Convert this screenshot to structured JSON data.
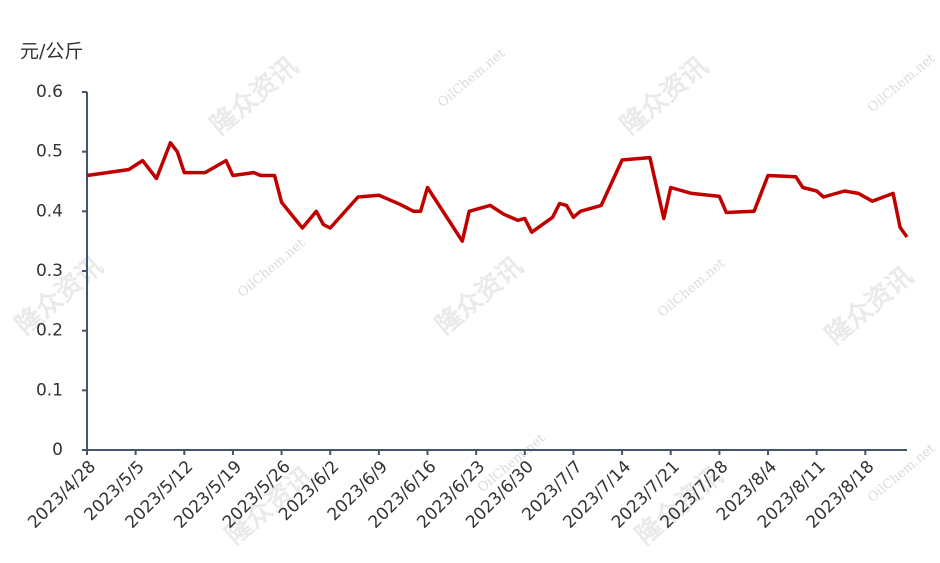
{
  "chart_data": {
    "type": "line",
    "y_label": "元/公斤",
    "watermark": {
      "brand": "隆众资讯",
      "site": "OilChem.net"
    },
    "x": [
      "2023/4/28",
      "2023/5/4",
      "2023/5/6",
      "2023/5/8",
      "2023/5/10",
      "2023/5/11",
      "2023/5/12",
      "2023/5/15",
      "2023/5/18",
      "2023/5/19",
      "2023/5/22",
      "2023/5/23",
      "2023/5/25",
      "2023/5/26",
      "2023/5/29",
      "2023/5/31",
      "2023/6/1",
      "2023/6/2",
      "2023/6/6",
      "2023/6/9",
      "2023/6/12",
      "2023/6/14",
      "2023/6/15",
      "2023/6/16",
      "2023/6/21",
      "2023/6/22",
      "2023/6/25",
      "2023/6/27",
      "2023/6/29",
      "2023/6/30",
      "2023/7/1",
      "2023/7/4",
      "2023/7/5",
      "2023/7/6",
      "2023/7/7",
      "2023/7/8",
      "2023/7/11",
      "2023/7/14",
      "2023/7/18",
      "2023/7/20",
      "2023/7/21",
      "2023/7/24",
      "2023/7/28",
      "2023/7/29",
      "2023/8/2",
      "2023/8/4",
      "2023/8/8",
      "2023/8/9",
      "2023/8/11",
      "2023/8/12",
      "2023/8/15",
      "2023/8/17",
      "2023/8/19",
      "2023/8/22",
      "2023/8/23",
      "2023/8/24"
    ],
    "series": [
      {
        "color": "#c00000",
        "values": [
          0.46,
          0.47,
          0.485,
          0.455,
          0.515,
          0.5,
          0.465,
          0.465,
          0.485,
          0.46,
          0.465,
          0.46,
          0.46,
          0.415,
          0.372,
          0.4,
          0.378,
          0.372,
          0.424,
          0.427,
          0.412,
          0.4,
          0.4,
          0.44,
          0.35,
          0.4,
          0.41,
          0.395,
          0.385,
          0.388,
          0.365,
          0.39,
          0.413,
          0.41,
          0.39,
          0.4,
          0.41,
          0.486,
          0.49,
          0.388,
          0.44,
          0.43,
          0.425,
          0.398,
          0.4,
          0.46,
          0.458,
          0.44,
          0.434,
          0.424,
          0.434,
          0.43,
          0.417,
          0.43,
          0.373,
          0.357
        ]
      }
    ],
    "xlim": [
      "2023/4/28",
      "2023/8/24"
    ],
    "xticks": [
      "2023/4/28",
      "2023/5/5",
      "2023/5/12",
      "2023/5/19",
      "2023/5/26",
      "2023/6/2",
      "2023/6/9",
      "2023/6/16",
      "2023/6/23",
      "2023/6/30",
      "2023/7/7",
      "2023/7/14",
      "2023/7/21",
      "2023/7/28",
      "2023/8/4",
      "2023/8/11",
      "2023/8/18"
    ],
    "ylim": [
      0,
      0.6
    ],
    "yticks": [
      0,
      0.1,
      0.2,
      0.3,
      0.4,
      0.5,
      0.6
    ],
    "grid": false
  }
}
